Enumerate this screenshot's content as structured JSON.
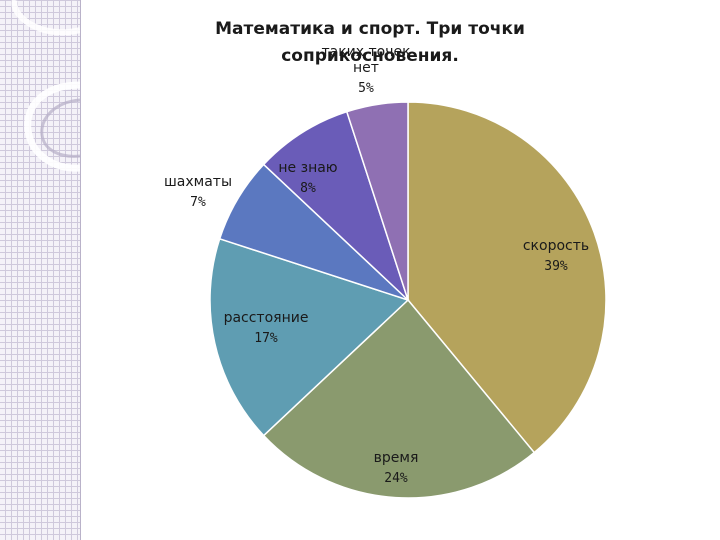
{
  "slide": {
    "title_line1": "Математика и спорт. Три точки",
    "title_line2": "соприкосновения."
  },
  "chart_data": {
    "type": "pie",
    "title": "Математика и спорт. Три точки соприкосновения.",
    "start_angle_deg": 0,
    "direction": "clockwise",
    "slices": [
      {
        "label": "скорость",
        "value": 39,
        "pct_label": "39%",
        "color": "#b5a35c"
      },
      {
        "label": "время",
        "value": 24,
        "pct_label": "24%",
        "color": "#8a9a6e"
      },
      {
        "label": "расстояние",
        "value": 17,
        "pct_label": "17%",
        "color": "#5f9db2"
      },
      {
        "label": "шахматы",
        "value": 7,
        "pct_label": "7%",
        "color": "#5b78c0"
      },
      {
        "label": "не знаю",
        "value": 8,
        "pct_label": "8%",
        "color": "#6a5cb8"
      },
      {
        "label": "таких точек нет",
        "label_lines": [
          "таких точек",
          "нет"
        ],
        "value": 5,
        "pct_label": "5%",
        "color": "#8f70b3"
      }
    ]
  }
}
